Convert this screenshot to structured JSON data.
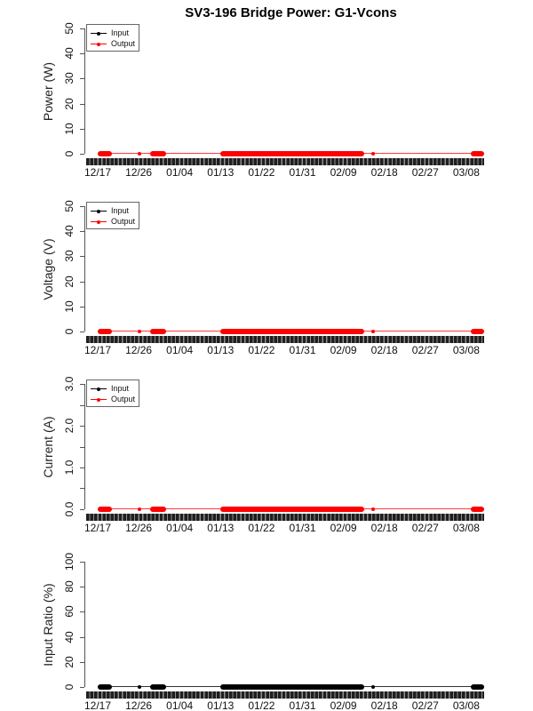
{
  "title": "SV3-196 Bridge Power: G1-Vcons",
  "legend": {
    "position": "top-left",
    "items": [
      {
        "label": "Input",
        "color": "#000000"
      },
      {
        "label": "Output",
        "color": "#ff0000"
      }
    ]
  },
  "x_ticks": [
    "12/17",
    "12/26",
    "01/04",
    "01/13",
    "01/22",
    "01/31",
    "02/09",
    "02/18",
    "02/27",
    "03/08"
  ],
  "activity_segments": [
    {
      "from": "12/17",
      "to": "12/20",
      "kind": "cluster",
      "frac": [
        0.0,
        0.037
      ]
    },
    {
      "from": "12/26",
      "to": "12/26",
      "kind": "dot",
      "frac": [
        0.103,
        0.113
      ]
    },
    {
      "from": "12/29",
      "to": "01/01",
      "kind": "cluster",
      "frac": [
        0.136,
        0.177
      ]
    },
    {
      "from": "01/12",
      "to": "02/13",
      "kind": "cluster",
      "frac": [
        0.317,
        0.69
      ]
    },
    {
      "from": "02/15",
      "to": "02/15",
      "kind": "dot",
      "frac": [
        0.708,
        0.717
      ]
    },
    {
      "from": "03/09",
      "to": "03/12",
      "kind": "cluster",
      "frac": [
        0.966,
        1.0
      ]
    }
  ],
  "panels": [
    {
      "name": "power",
      "ylabel": "Power (W)",
      "ytick_labels": [
        "0",
        "10",
        "20",
        "30",
        "40",
        "50"
      ],
      "minor_fracs": [],
      "has_legend": true,
      "point_color": "#ff0000",
      "line_color": "#ff3b3b"
    },
    {
      "name": "voltage",
      "ylabel": "Voltage (V)",
      "ytick_labels": [
        "0",
        "10",
        "20",
        "30",
        "40",
        "50"
      ],
      "minor_fracs": [],
      "has_legend": true,
      "point_color": "#ff0000",
      "line_color": "#ff3b3b"
    },
    {
      "name": "current",
      "ylabel": "Current (A)",
      "ytick_labels": [
        "0.0",
        "1.0",
        "2.0",
        "3.0"
      ],
      "minor_fracs": [
        0.1667,
        0.5,
        0.8333
      ],
      "has_legend": true,
      "point_color": "#ff0000",
      "line_color": "#ff3b3b"
    },
    {
      "name": "input-ratio",
      "ylabel": "Input Ratio (%)",
      "ytick_labels": [
        "0",
        "20",
        "40",
        "60",
        "80",
        "100"
      ],
      "minor_fracs": [],
      "has_legend": false,
      "point_color": "#000000",
      "line_color": "#333333"
    }
  ],
  "chart_data": [
    {
      "type": "scatter",
      "title": "SV3-196 Bridge Power: G1-Vcons",
      "ylabel": "Power (W)",
      "ylim": [
        0,
        50
      ],
      "yticks": [
        0,
        10,
        20,
        30,
        40,
        50
      ],
      "x_tick_labels": [
        "12/17",
        "12/26",
        "01/04",
        "01/13",
        "01/22",
        "01/31",
        "02/09",
        "02/18",
        "02/27",
        "03/08"
      ],
      "x_range_days": 85,
      "legend_entries": [
        "Input",
        "Output"
      ],
      "legend_position": "top-left",
      "grid": false,
      "series": [
        {
          "name": "Input",
          "color": "#000000",
          "approx_value_all_points": 0
        },
        {
          "name": "Output",
          "color": "#ff0000",
          "approx_value_all_points": 0
        }
      ],
      "data_present_intervals": [
        [
          "12/17",
          "12/20"
        ],
        [
          "12/26",
          "12/26"
        ],
        [
          "12/29",
          "01/01"
        ],
        [
          "01/12",
          "02/13"
        ],
        [
          "02/15",
          "02/15"
        ],
        [
          "03/09",
          "03/12"
        ]
      ],
      "note": "All plotted values are approximately 0 W; dense rug of sample ticks along the x-axis"
    },
    {
      "type": "scatter",
      "title": "",
      "ylabel": "Voltage (V)",
      "ylim": [
        0,
        50
      ],
      "yticks": [
        0,
        10,
        20,
        30,
        40,
        50
      ],
      "x_tick_labels": [
        "12/17",
        "12/26",
        "01/04",
        "01/13",
        "01/22",
        "01/31",
        "02/09",
        "02/18",
        "02/27",
        "03/08"
      ],
      "legend_entries": [
        "Input",
        "Output"
      ],
      "legend_position": "top-left",
      "grid": false,
      "series": [
        {
          "name": "Input",
          "color": "#000000",
          "approx_value_all_points": 0
        },
        {
          "name": "Output",
          "color": "#ff0000",
          "approx_value_all_points": 0
        }
      ],
      "data_present_intervals": [
        [
          "12/17",
          "12/20"
        ],
        [
          "12/26",
          "12/26"
        ],
        [
          "12/29",
          "01/01"
        ],
        [
          "01/12",
          "02/13"
        ],
        [
          "02/15",
          "02/15"
        ],
        [
          "03/09",
          "03/12"
        ]
      ],
      "note": "All plotted values are approximately 0 V"
    },
    {
      "type": "scatter",
      "title": "",
      "ylabel": "Current (A)",
      "ylim": [
        0,
        3
      ],
      "yticks": [
        0.0,
        1.0,
        2.0,
        3.0
      ],
      "minor_yticks": [
        0.5,
        1.5,
        2.5
      ],
      "x_tick_labels": [
        "12/17",
        "12/26",
        "01/04",
        "01/13",
        "01/22",
        "01/31",
        "02/09",
        "02/18",
        "02/27",
        "03/08"
      ],
      "legend_entries": [
        "Input",
        "Output"
      ],
      "legend_position": "top-left",
      "grid": false,
      "series": [
        {
          "name": "Input",
          "color": "#000000",
          "approx_value_all_points": 0
        },
        {
          "name": "Output",
          "color": "#ff0000",
          "approx_value_all_points": 0
        }
      ],
      "data_present_intervals": [
        [
          "12/17",
          "12/20"
        ],
        [
          "12/26",
          "12/26"
        ],
        [
          "12/29",
          "01/01"
        ],
        [
          "01/12",
          "02/13"
        ],
        [
          "02/15",
          "02/15"
        ],
        [
          "03/09",
          "03/12"
        ]
      ],
      "note": "All plotted values are approximately 0 A"
    },
    {
      "type": "scatter",
      "title": "",
      "ylabel": "Input Ratio (%)",
      "ylim": [
        0,
        100
      ],
      "yticks": [
        0,
        20,
        40,
        60,
        80,
        100
      ],
      "x_tick_labels": [
        "12/17",
        "12/26",
        "01/04",
        "01/13",
        "01/22",
        "01/31",
        "02/09",
        "02/18",
        "02/27",
        "03/08"
      ],
      "legend_entries": [],
      "grid": false,
      "series": [
        {
          "name": "Input",
          "color": "#000000",
          "approx_value_all_points": 0
        }
      ],
      "data_present_intervals": [
        [
          "12/17",
          "12/20"
        ],
        [
          "12/26",
          "12/26"
        ],
        [
          "12/29",
          "01/01"
        ],
        [
          "01/12",
          "02/13"
        ],
        [
          "02/15",
          "02/15"
        ],
        [
          "03/09",
          "03/12"
        ]
      ],
      "note": "All plotted values are approximately 0 %"
    }
  ]
}
